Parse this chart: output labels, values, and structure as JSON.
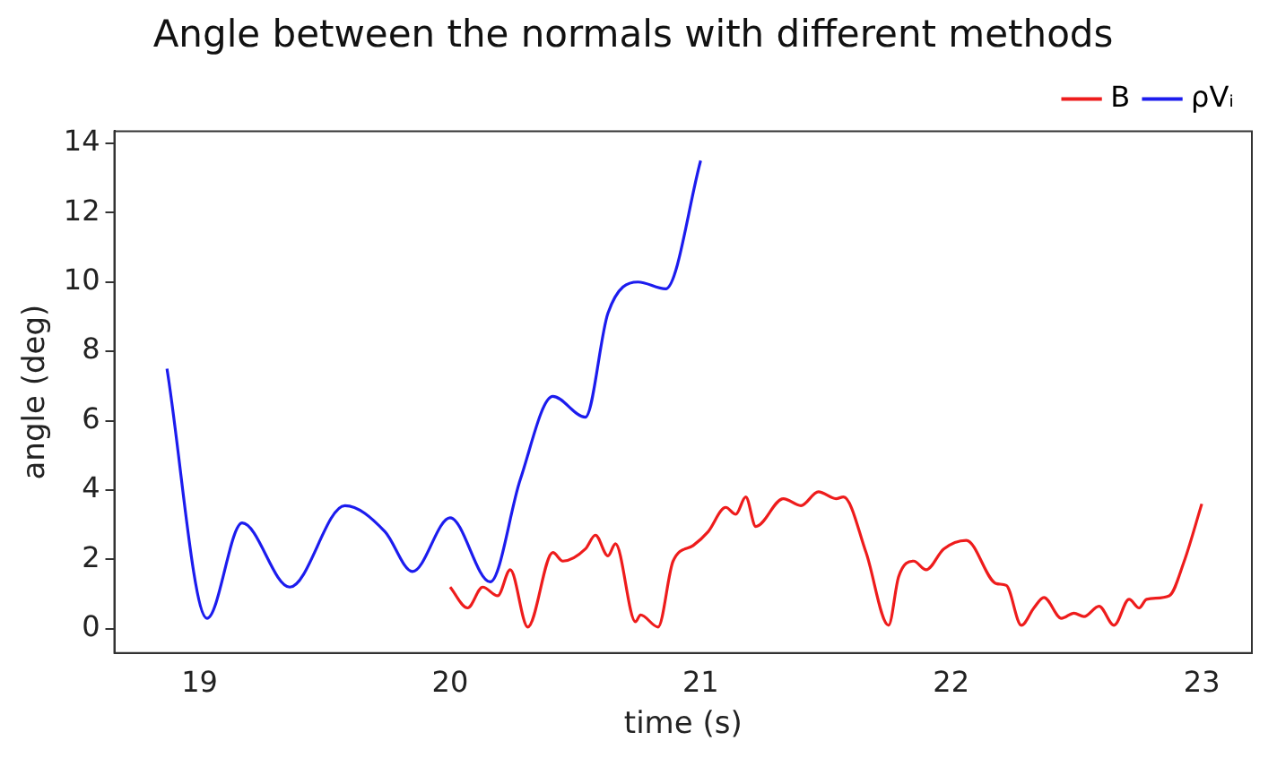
{
  "chart_data": {
    "type": "line",
    "title": "Angle between the normals with different methods",
    "xlabel": "time (s)",
    "ylabel": "angle (deg)",
    "xlim": [
      18.66,
      23.2
    ],
    "xticks": [
      19,
      20,
      21,
      22,
      23
    ],
    "ylim": [
      -0.7,
      14.35
    ],
    "yticks": [
      0,
      2,
      4,
      6,
      8,
      10,
      12,
      14
    ],
    "grid": false,
    "legend": "top right",
    "marker": "none",
    "line_style": "solid",
    "series": [
      {
        "name": "B",
        "color": "#ee1c1c",
        "x": [
          20.0,
          20.07,
          20.13,
          20.19,
          20.24,
          20.31,
          20.41,
          20.45,
          20.54,
          20.58,
          20.63,
          20.66,
          20.74,
          20.76,
          20.83,
          20.89,
          20.97,
          21.03,
          21.1,
          21.14,
          21.18,
          21.22,
          21.33,
          21.4,
          21.47,
          21.54,
          21.57,
          21.66,
          21.75,
          21.79,
          21.85,
          21.9,
          21.97,
          22.06,
          22.18,
          22.22,
          22.28,
          22.33,
          22.37,
          22.44,
          22.49,
          22.53,
          22.59,
          22.65,
          22.71,
          22.75,
          22.78,
          22.87,
          22.93,
          23.0
        ],
        "values": [
          1.2,
          0.6,
          1.2,
          0.95,
          1.7,
          0.05,
          2.2,
          1.95,
          2.3,
          2.7,
          2.1,
          2.45,
          0.2,
          0.4,
          0.05,
          1.95,
          2.4,
          2.8,
          3.5,
          3.3,
          3.8,
          2.95,
          3.75,
          3.55,
          3.95,
          3.75,
          3.8,
          2.2,
          0.1,
          1.5,
          1.95,
          1.7,
          2.3,
          2.55,
          1.3,
          1.25,
          0.1,
          0.6,
          0.9,
          0.3,
          0.45,
          0.35,
          0.65,
          0.1,
          0.85,
          0.6,
          0.85,
          0.95,
          1.95,
          3.6
        ]
      },
      {
        "name": "ρVᵢ",
        "color": "#1c1cee",
        "x": [
          18.87,
          19.03,
          19.17,
          19.36,
          19.58,
          19.74,
          19.85,
          20.0,
          20.16,
          20.28,
          20.41,
          20.54,
          20.63,
          20.75,
          20.86,
          21.0
        ],
        "values": [
          7.5,
          0.3,
          3.05,
          1.2,
          3.55,
          2.8,
          1.65,
          3.2,
          1.35,
          4.3,
          6.7,
          6.1,
          9.1,
          10.0,
          9.8,
          13.5
        ]
      }
    ]
  }
}
